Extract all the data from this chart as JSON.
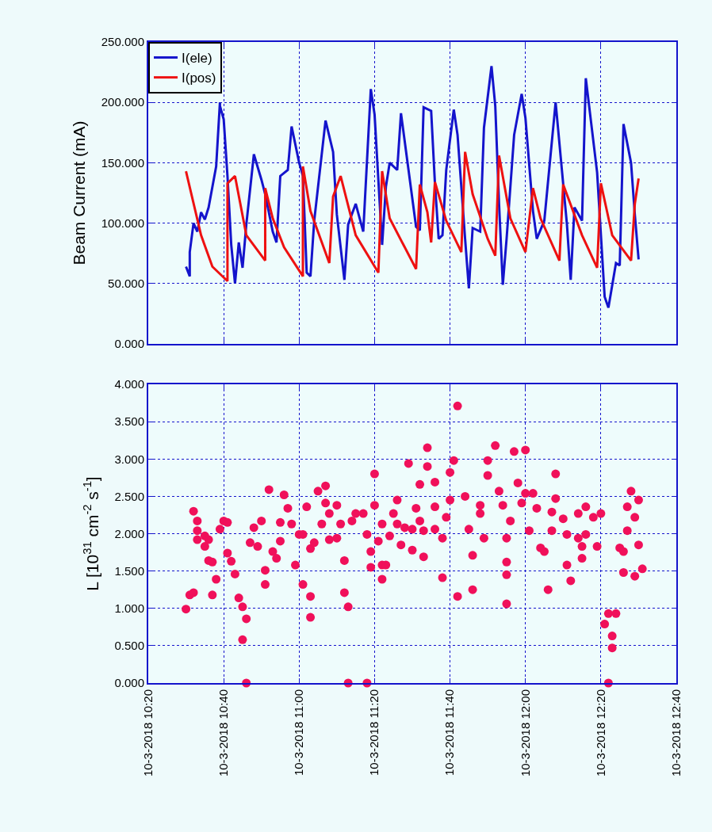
{
  "chart_data": [
    {
      "type": "line",
      "ylabel": "Beam Current (mA)",
      "legend": "top left",
      "grid": true,
      "tick_labels": "y",
      "xlim": [
        "2018-10-03T10:20",
        "2018-10-03T12:40"
      ],
      "xticks": [
        {
          "value": "2018-10-03T10:20",
          "label": null
        },
        {
          "value": "2018-10-03T10:40",
          "label": null
        },
        {
          "value": "2018-10-03T11:00",
          "label": null
        },
        {
          "value": "2018-10-03T11:20",
          "label": null
        },
        {
          "value": "2018-10-03T11:40",
          "label": null
        },
        {
          "value": "2018-10-03T12:00",
          "label": null
        },
        {
          "value": "2018-10-03T12:20",
          "label": null
        },
        {
          "value": "2018-10-03T12:40",
          "label": null
        }
      ],
      "ylim": [
        0,
        250
      ],
      "yticks": [
        {
          "value": 0,
          "label": "0.000"
        },
        {
          "value": 50,
          "label": "50.000"
        },
        {
          "value": 100,
          "label": "100.000"
        },
        {
          "value": 150,
          "label": "150.000"
        },
        {
          "value": 200,
          "label": "200.000"
        },
        {
          "value": 250,
          "label": "250.000"
        }
      ],
      "series": [
        {
          "name": "I(ele)",
          "color": "#1414cc",
          "x": [
            "2018-10-03T10:30",
            "2018-10-03T10:31",
            "2018-10-03T10:31",
            "2018-10-03T10:32",
            "2018-10-03T10:33",
            "2018-10-03T10:34",
            "2018-10-03T10:35",
            "2018-10-03T10:36",
            "2018-10-03T10:38",
            "2018-10-03T10:39",
            "2018-10-03T10:39",
            "2018-10-03T10:40",
            "2018-10-03T10:41",
            "2018-10-03T10:42",
            "2018-10-03T10:43",
            "2018-10-03T10:44",
            "2018-10-03T10:45",
            "2018-10-03T10:46",
            "2018-10-03T10:48",
            "2018-10-03T10:50",
            "2018-10-03T10:51",
            "2018-10-03T10:53",
            "2018-10-03T10:54",
            "2018-10-03T10:55",
            "2018-10-03T10:57",
            "2018-10-03T10:58",
            "2018-10-03T11:00",
            "2018-10-03T11:01",
            "2018-10-03T11:02",
            "2018-10-03T11:03",
            "2018-10-03T11:04",
            "2018-10-03T11:07",
            "2018-10-03T11:09",
            "2018-10-03T11:10",
            "2018-10-03T11:12",
            "2018-10-03T11:13",
            "2018-10-03T11:15",
            "2018-10-03T11:17",
            "2018-10-03T11:19",
            "2018-10-03T11:20",
            "2018-10-03T11:22",
            "2018-10-03T11:23",
            "2018-10-03T11:24",
            "2018-10-03T11:26",
            "2018-10-03T11:27",
            "2018-10-03T11:29",
            "2018-10-03T11:31",
            "2018-10-03T11:32",
            "2018-10-03T11:33",
            "2018-10-03T11:35",
            "2018-10-03T11:36",
            "2018-10-03T11:37",
            "2018-10-03T11:38",
            "2018-10-03T11:39",
            "2018-10-03T11:41",
            "2018-10-03T11:42",
            "2018-10-03T11:44",
            "2018-10-03T11:45",
            "2018-10-03T11:46",
            "2018-10-03T11:48",
            "2018-10-03T11:49",
            "2018-10-03T11:51",
            "2018-10-03T11:52",
            "2018-10-03T11:53",
            "2018-10-03T11:54",
            "2018-10-03T11:55",
            "2018-10-03T11:57",
            "2018-10-03T11:59",
            "2018-10-03T12:00",
            "2018-10-03T12:02",
            "2018-10-03T12:03",
            "2018-10-03T12:05",
            "2018-10-03T12:08",
            "2018-10-03T12:11",
            "2018-10-03T12:12",
            "2018-10-03T12:13",
            "2018-10-03T12:15",
            "2018-10-03T12:16",
            "2018-10-03T12:19",
            "2018-10-03T12:21",
            "2018-10-03T12:22",
            "2018-10-03T12:24",
            "2018-10-03T12:25",
            "2018-10-03T12:26",
            "2018-10-03T12:28",
            "2018-10-03T12:29",
            "2018-10-03T12:30"
          ],
          "values": [
            64,
            56,
            76,
            100,
            93,
            109,
            103,
            113,
            147,
            200,
            197,
            186,
            139,
            82,
            50,
            84,
            63,
            99,
            157,
            136,
            124,
            93,
            84,
            139,
            144,
            180,
            150,
            139,
            59,
            56,
            102,
            185,
            159,
            107,
            53,
            99,
            116,
            93,
            211,
            190,
            82,
            130,
            150,
            144,
            191,
            144,
            97,
            94,
            196,
            193,
            133,
            87,
            90,
            144,
            194,
            173,
            87,
            46,
            96,
            93,
            179,
            230,
            197,
            116,
            49,
            87,
            173,
            207,
            187,
            110,
            87,
            102,
            200,
            99,
            53,
            113,
            102,
            220,
            142,
            39,
            30,
            67,
            65,
            182,
            150,
            107,
            70
          ]
        },
        {
          "name": "I(pos)",
          "color": "#ee1111",
          "x": [
            "2018-10-03T10:30",
            "2018-10-03T10:34",
            "2018-10-03T10:37",
            "2018-10-03T10:41",
            "2018-10-03T10:41",
            "2018-10-03T10:43",
            "2018-10-03T10:46",
            "2018-10-03T10:51",
            "2018-10-03T10:51",
            "2018-10-03T10:53",
            "2018-10-03T10:56",
            "2018-10-03T11:01",
            "2018-10-03T11:01",
            "2018-10-03T11:03",
            "2018-10-03T11:08",
            "2018-10-03T11:09",
            "2018-10-03T11:11",
            "2018-10-03T11:15",
            "2018-10-03T11:21",
            "2018-10-03T11:22",
            "2018-10-03T11:24",
            "2018-10-03T11:31",
            "2018-10-03T11:32",
            "2018-10-03T11:34",
            "2018-10-03T11:35",
            "2018-10-03T11:36",
            "2018-10-03T11:39",
            "2018-10-03T11:43",
            "2018-10-03T11:44",
            "2018-10-03T11:46",
            "2018-10-03T11:50",
            "2018-10-03T11:52",
            "2018-10-03T11:53",
            "2018-10-03T11:56",
            "2018-10-03T12:00",
            "2018-10-03T12:02",
            "2018-10-03T12:04",
            "2018-10-03T12:09",
            "2018-10-03T12:10",
            "2018-10-03T12:15",
            "2018-10-03T12:19",
            "2018-10-03T12:20",
            "2018-10-03T12:23",
            "2018-10-03T12:28",
            "2018-10-03T12:29",
            "2018-10-03T12:30"
          ],
          "values": [
            143,
            90,
            64,
            52,
            133,
            139,
            90,
            69,
            129,
            104,
            80,
            56,
            147,
            110,
            67,
            122,
            139,
            90,
            59,
            143,
            104,
            62,
            132,
            109,
            84,
            134,
            102,
            76,
            159,
            124,
            87,
            73,
            156,
            104,
            76,
            129,
            104,
            69,
            132,
            90,
            63,
            133,
            90,
            69,
            116,
            137
          ]
        }
      ]
    },
    {
      "type": "scatter",
      "ylabel": "L [10$^{31}$ cm$^{-2}$ s$^{-1}$]",
      "grid": true,
      "marker": "circle",
      "xlim": [
        "2018-10-03T10:20",
        "2018-10-03T12:40"
      ],
      "xticks": [
        {
          "value": "2018-10-03T10:20",
          "label": "10-3-2018 10:20"
        },
        {
          "value": "2018-10-03T10:40",
          "label": "10-3-2018 10:40"
        },
        {
          "value": "2018-10-03T11:00",
          "label": "10-3-2018 11:00"
        },
        {
          "value": "2018-10-03T11:20",
          "label": "10-3-2018 11:20"
        },
        {
          "value": "2018-10-03T11:40",
          "label": "10-3-2018 11:40"
        },
        {
          "value": "2018-10-03T12:00",
          "label": "10-3-2018 12:00"
        },
        {
          "value": "2018-10-03T12:20",
          "label": "10-3-2018 12:20"
        },
        {
          "value": "2018-10-03T12:40",
          "label": "10-3-2018 12:40"
        }
      ],
      "ylim": [
        0,
        4
      ],
      "yticks": [
        {
          "value": 0,
          "label": "0.000"
        },
        {
          "value": 0.5,
          "label": "0.500"
        },
        {
          "value": 1,
          "label": "1.000"
        },
        {
          "value": 1.5,
          "label": "1.500"
        },
        {
          "value": 2,
          "label": "2.000"
        },
        {
          "value": 2.5,
          "label": "2.500"
        },
        {
          "value": 3,
          "label": "3.000"
        },
        {
          "value": 3.5,
          "label": "3.500"
        },
        {
          "value": 4,
          "label": "4.000"
        }
      ],
      "series": [
        {
          "color": "#f0105a",
          "x": [
            "2018-10-03T10:30",
            "2018-10-03T10:31",
            "2018-10-03T10:32",
            "2018-10-03T10:32",
            "2018-10-03T10:33",
            "2018-10-03T10:33",
            "2018-10-03T10:33",
            "2018-10-03T10:35",
            "2018-10-03T10:35",
            "2018-10-03T10:36",
            "2018-10-03T10:36",
            "2018-10-03T10:37",
            "2018-10-03T10:38",
            "2018-10-03T10:37",
            "2018-10-03T10:39",
            "2018-10-03T10:40",
            "2018-10-03T10:41",
            "2018-10-03T10:41",
            "2018-10-03T10:42",
            "2018-10-03T10:43",
            "2018-10-03T10:44",
            "2018-10-03T10:45",
            "2018-10-03T10:46",
            "2018-10-03T10:45",
            "2018-10-03T10:46",
            "2018-10-03T10:47",
            "2018-10-03T10:48",
            "2018-10-03T10:49",
            "2018-10-03T10:50",
            "2018-10-03T10:51",
            "2018-10-03T10:51",
            "2018-10-03T10:52",
            "2018-10-03T10:53",
            "2018-10-03T10:54",
            "2018-10-03T10:55",
            "2018-10-03T10:55",
            "2018-10-03T10:56",
            "2018-10-03T10:57",
            "2018-10-03T10:58",
            "2018-10-03T10:59",
            "2018-10-03T11:00",
            "2018-10-03T11:01",
            "2018-10-03T11:02",
            "2018-10-03T11:01",
            "2018-10-03T11:03",
            "2018-10-03T11:03",
            "2018-10-03T11:03",
            "2018-10-03T11:04",
            "2018-10-03T11:06",
            "2018-10-03T11:05",
            "2018-10-03T11:07",
            "2018-10-03T11:07",
            "2018-10-03T11:08",
            "2018-10-03T11:10",
            "2018-10-03T11:08",
            "2018-10-03T11:10",
            "2018-10-03T11:11",
            "2018-10-03T11:12",
            "2018-10-03T11:12",
            "2018-10-03T11:13",
            "2018-10-03T11:13",
            "2018-10-03T11:14",
            "2018-10-03T11:15",
            "2018-10-03T11:17",
            "2018-10-03T11:18",
            "2018-10-03T11:18",
            "2018-10-03T11:19",
            "2018-10-03T11:19",
            "2018-10-03T11:20",
            "2018-10-03T11:20",
            "2018-10-03T11:21",
            "2018-10-03T11:22",
            "2018-10-03T11:22",
            "2018-10-03T11:22",
            "2018-10-03T11:23",
            "2018-10-03T11:24",
            "2018-10-03T11:25",
            "2018-10-03T11:26",
            "2018-10-03T11:26",
            "2018-10-03T11:27",
            "2018-10-03T11:28",
            "2018-10-03T11:29",
            "2018-10-03T11:30",
            "2018-10-03T11:30",
            "2018-10-03T11:31",
            "2018-10-03T11:32",
            "2018-10-03T11:32",
            "2018-10-03T11:33",
            "2018-10-03T11:33",
            "2018-10-03T11:34",
            "2018-10-03T11:34",
            "2018-10-03T11:36",
            "2018-10-03T11:36",
            "2018-10-03T11:36",
            "2018-10-03T11:38",
            "2018-10-03T11:38",
            "2018-10-03T11:39",
            "2018-10-03T11:40",
            "2018-10-03T11:41",
            "2018-10-03T11:42",
            "2018-10-03T11:40",
            "2018-10-03T11:42",
            "2018-10-03T11:44",
            "2018-10-03T11:45",
            "2018-10-03T11:46",
            "2018-10-03T11:46",
            "2018-10-03T11:48",
            "2018-10-03T11:48",
            "2018-10-03T11:49",
            "2018-10-03T11:50",
            "2018-10-03T11:50",
            "2018-10-03T11:52",
            "2018-10-03T11:53",
            "2018-10-03T11:54",
            "2018-10-03T11:55",
            "2018-10-03T11:55",
            "2018-10-03T11:55",
            "2018-10-03T11:55",
            "2018-10-03T11:56",
            "2018-10-03T11:57",
            "2018-10-03T11:58",
            "2018-10-03T11:59",
            "2018-10-03T12:00",
            "2018-10-03T12:00",
            "2018-10-03T12:02",
            "2018-10-03T12:01",
            "2018-10-03T12:03",
            "2018-10-03T12:04",
            "2018-10-03T12:05",
            "2018-10-03T12:06",
            "2018-10-03T12:07",
            "2018-10-03T12:07",
            "2018-10-03T12:08",
            "2018-10-03T12:08",
            "2018-10-03T12:10",
            "2018-10-03T12:11",
            "2018-10-03T12:11",
            "2018-10-03T12:12",
            "2018-10-03T12:14",
            "2018-10-03T12:15",
            "2018-10-03T12:15",
            "2018-10-03T12:16",
            "2018-10-03T12:14",
            "2018-10-03T12:16",
            "2018-10-03T12:18",
            "2018-10-03T12:19",
            "2018-10-03T12:20",
            "2018-10-03T12:21",
            "2018-10-03T12:22",
            "2018-10-03T12:22",
            "2018-10-03T12:23",
            "2018-10-03T12:23",
            "2018-10-03T12:24",
            "2018-10-03T12:25",
            "2018-10-03T12:26",
            "2018-10-03T12:26",
            "2018-10-03T12:27",
            "2018-10-03T12:27",
            "2018-10-03T12:28",
            "2018-10-03T12:29",
            "2018-10-03T12:29",
            "2018-10-03T12:30",
            "2018-10-03T12:30",
            "2018-10-03T12:31"
          ],
          "values": [
            0.99,
            1.18,
            1.21,
            2.3,
            2.17,
            2.04,
            1.92,
            1.97,
            1.83,
            1.92,
            1.64,
            1.62,
            1.39,
            1.18,
            2.06,
            2.17,
            2.15,
            1.74,
            1.63,
            1.46,
            1.14,
            1.02,
            0.86,
            0.58,
            0,
            1.88,
            2.08,
            1.83,
            2.17,
            1.51,
            1.32,
            2.59,
            1.76,
            1.67,
            1.9,
            2.15,
            2.52,
            2.34,
            2.13,
            1.58,
            1.99,
            1.99,
            2.36,
            1.32,
            1.16,
            0.88,
            1.8,
            1.88,
            2.13,
            2.57,
            2.64,
            2.41,
            2.27,
            2.38,
            1.92,
            1.94,
            2.13,
            1.64,
            1.21,
            1.02,
            0,
            2.17,
            2.27,
            2.27,
            0,
            1.99,
            1.55,
            1.76,
            2.8,
            2.38,
            1.9,
            2.13,
            1.39,
            1.58,
            1.58,
            1.97,
            2.27,
            2.45,
            2.13,
            1.85,
            2.08,
            2.94,
            1.78,
            2.06,
            2.34,
            2.17,
            2.66,
            2.04,
            1.69,
            2.9,
            3.15,
            2.06,
            2.36,
            2.69,
            1.94,
            1.41,
            2.22,
            2.82,
            2.98,
            3.71,
            2.45,
            1.16,
            2.5,
            2.06,
            1.25,
            1.71,
            2.38,
            2.27,
            1.94,
            2.78,
            2.98,
            3.18,
            2.57,
            2.38,
            1.45,
            1.06,
            1.62,
            1.94,
            2.17,
            3.1,
            2.68,
            2.41,
            3.12,
            2.54,
            2.54,
            2.04,
            2.34,
            1.81,
            1.76,
            1.25,
            2.29,
            2.04,
            2.8,
            2.47,
            2.2,
            1.99,
            1.58,
            1.37,
            1.94,
            1.67,
            1.83,
            1.99,
            2.27,
            2.36,
            2.22,
            1.83,
            2.27,
            0.79,
            0,
            0.93,
            0.63,
            0.47,
            0.93,
            1.81,
            1.48,
            1.76,
            2.36,
            2.04,
            2.57,
            1.43,
            2.22,
            1.85,
            2.45,
            1.53
          ]
        }
      ]
    }
  ]
}
